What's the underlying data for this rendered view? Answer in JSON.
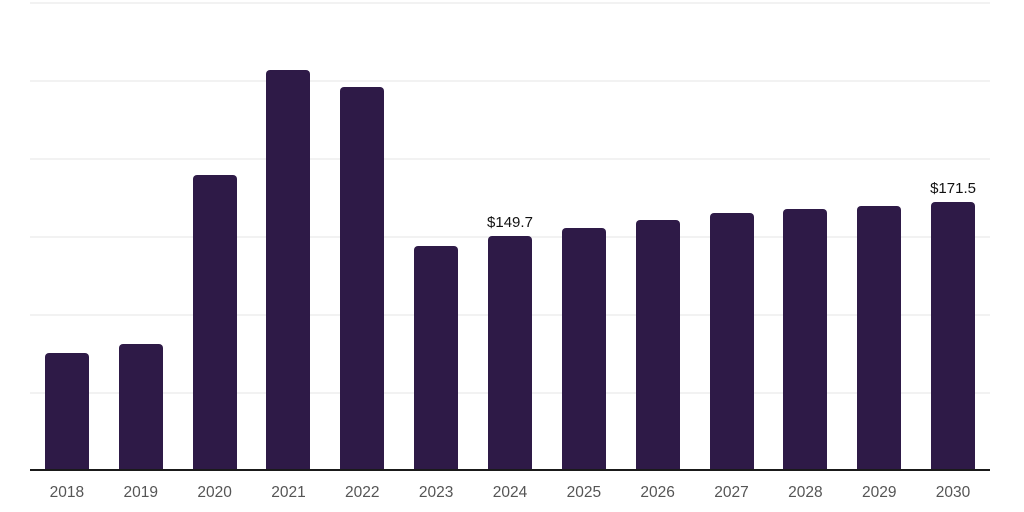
{
  "chart_data": {
    "type": "bar",
    "title": "",
    "xlabel": "",
    "ylabel": "",
    "categories": [
      "2018",
      "2019",
      "2020",
      "2021",
      "2022",
      "2023",
      "2024",
      "2025",
      "2026",
      "2027",
      "2028",
      "2029",
      "2030"
    ],
    "values": [
      75.0,
      81.0,
      189.2,
      256.3,
      245.5,
      143.4,
      149.7,
      155.0,
      160.2,
      164.5,
      167.0,
      169.5,
      171.5
    ],
    "data_labels": [
      {
        "category": "2024",
        "text": "$149.7"
      },
      {
        "category": "2030",
        "text": "$171.5"
      }
    ],
    "ylim": [
      0,
      300
    ],
    "gridline_step": 50,
    "grid": true,
    "legend": false,
    "bar_color": "#2e1a47",
    "axis_line_color": "#1a1a1a",
    "gridline_color": "#f2f2f2",
    "tick_label_color": "#555555",
    "data_label_color": "#111111"
  }
}
